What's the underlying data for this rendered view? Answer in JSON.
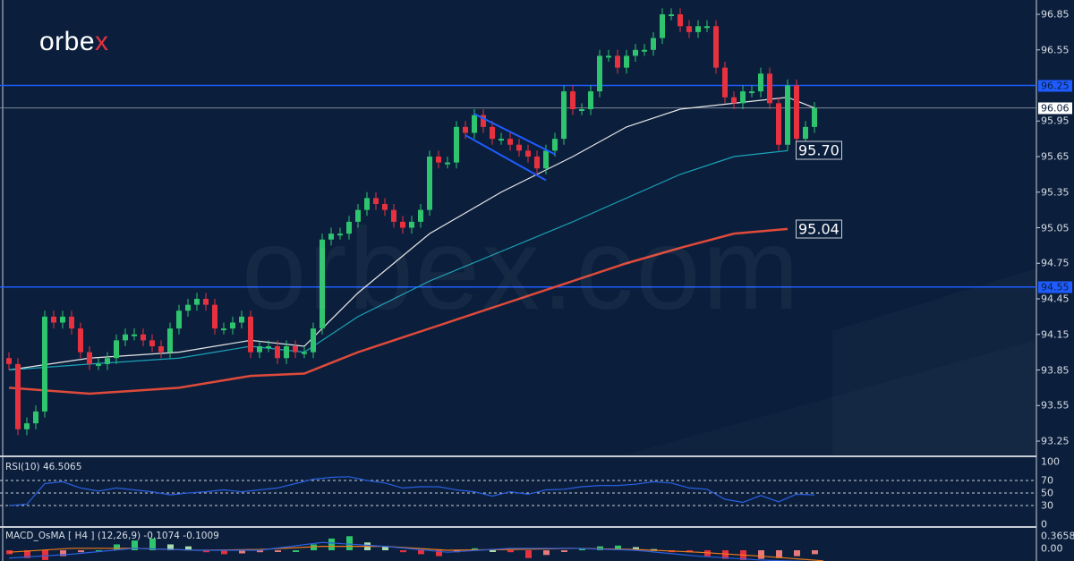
{
  "logo": {
    "text": "orbex",
    "watermark": "orbex.com"
  },
  "colors": {
    "background": "#0b1f3c",
    "up": "#2ec56e",
    "down": "#e8313f",
    "ma_fast": "#e6e6e6",
    "ma_mid": "#1aa3b8",
    "ma_slow": "#e04a3a",
    "level_line": "#1f5cff",
    "rsi": "#2a5fe0",
    "macd_line": "#2a5fe0",
    "signal_line": "#f07a1a"
  },
  "chart_data": {
    "type": "candlestick",
    "y_ticks": [
      "96.85",
      "96.55",
      "95.95",
      "95.65",
      "95.35",
      "95.05",
      "94.75",
      "94.45",
      "94.15",
      "93.85",
      "93.55",
      "93.25"
    ],
    "ylim": [
      93.15,
      96.95
    ],
    "close": [
      93.9,
      93.35,
      93.4,
      93.5,
      94.3,
      94.25,
      94.3,
      94.2,
      94.0,
      93.9,
      93.9,
      93.95,
      94.1,
      94.15,
      94.15,
      94.1,
      94.05,
      94.0,
      94.2,
      94.35,
      94.4,
      94.45,
      94.4,
      94.2,
      94.2,
      94.25,
      94.3,
      94.0,
      94.05,
      94.05,
      93.95,
      94.05,
      94.0,
      94.0,
      94.2,
      94.95,
      95.0,
      95.0,
      95.1,
      95.2,
      95.3,
      95.25,
      95.2,
      95.1,
      95.05,
      95.1,
      95.2,
      95.65,
      95.6,
      95.6,
      95.9,
      95.85,
      96.0,
      95.9,
      95.8,
      95.8,
      95.75,
      95.7,
      95.65,
      95.55,
      95.7,
      95.8,
      96.2,
      96.05,
      96.05,
      96.2,
      96.5,
      96.5,
      96.4,
      96.5,
      96.55,
      96.55,
      96.65,
      96.85,
      96.85,
      96.75,
      96.7,
      96.75,
      96.75,
      96.4,
      96.15,
      96.1,
      96.2,
      96.2,
      96.35,
      96.1,
      95.75,
      96.25,
      95.8,
      95.9,
      96.06
    ],
    "moving_averages": [
      {
        "color_key": "ma_fast",
        "values": [
          93.85,
          93.95,
          94.0,
          94.1,
          94.05,
          94.5,
          95.0,
          95.35,
          95.65,
          95.9,
          96.05,
          96.1,
          96.15,
          96.06
        ]
      },
      {
        "color_key": "ma_mid",
        "values": [
          93.85,
          93.9,
          93.95,
          94.05,
          94.0,
          94.3,
          94.6,
          94.85,
          95.1,
          95.3,
          95.5,
          95.65,
          95.7
        ]
      },
      {
        "color_key": "ma_slow",
        "values": [
          93.7,
          93.65,
          93.7,
          93.8,
          93.82,
          94.0,
          94.2,
          94.4,
          94.6,
          94.75,
          94.88,
          95.0,
          95.04
        ]
      }
    ],
    "levels": [
      {
        "price": 96.25,
        "label": "96.25",
        "style": "blue"
      },
      {
        "price": 94.55,
        "label": "94.55",
        "style": "blue"
      },
      {
        "price": 96.06,
        "label": "96.06",
        "style": "current"
      }
    ],
    "annotations": [
      {
        "label": "95.70",
        "price": 95.7
      },
      {
        "label": "95.04",
        "price": 95.04
      }
    ],
    "channel": {
      "upper": [
        [
          52,
          96.01
        ],
        [
          61,
          95.67
        ]
      ],
      "lower": [
        [
          51,
          95.83
        ],
        [
          60,
          95.45
        ]
      ]
    }
  },
  "rsi": {
    "label": "RSI(10) 46.5065",
    "ticks": [
      "100",
      "70",
      "50",
      "30",
      "0"
    ],
    "levels": [
      70,
      50,
      30
    ],
    "values": [
      30,
      32,
      65,
      68,
      58,
      53,
      58,
      55,
      52,
      47,
      50,
      52,
      55,
      52,
      55,
      58,
      65,
      72,
      75,
      76,
      70,
      66,
      58,
      60,
      60,
      55,
      52,
      45,
      52,
      48,
      55,
      56,
      60,
      62,
      62,
      64,
      68,
      66,
      58,
      56,
      40,
      35,
      46,
      36,
      48,
      47
    ]
  },
  "macd": {
    "label": "MACD_OsMA [ H4 ] (12,26,9)  -0.1074 -0.1009",
    "ticks": [
      "0.3658",
      "0.00"
    ],
    "histogram": [
      -0.1,
      -0.2,
      -0.25,
      -0.15,
      -0.05,
      0.0,
      0.15,
      0.25,
      0.3,
      0.15,
      0.1,
      -0.05,
      -0.1,
      -0.08,
      -0.05,
      -0.02,
      0.0,
      0.15,
      0.3,
      0.36,
      0.2,
      0.1,
      -0.05,
      -0.1,
      -0.15,
      -0.05,
      0.05,
      0.0,
      -0.05,
      -0.2,
      -0.12,
      -0.02,
      0.05,
      0.1,
      0.12,
      0.08,
      0.03,
      -0.05,
      -0.05,
      -0.15,
      -0.22,
      -0.25,
      -0.22,
      -0.2,
      -0.15,
      -0.1
    ],
    "macd_line": [
      -0.2,
      -0.1,
      0.05,
      0.0,
      0.0,
      0.2,
      0.1,
      -0.05,
      0.05,
      0.05,
      0.0,
      -0.15,
      -0.25,
      -0.3
    ],
    "signal_line": [
      -0.05,
      0.05,
      0.05,
      0.0,
      0.02,
      0.1,
      0.1,
      0.0,
      0.02,
      0.05,
      0.02,
      -0.05,
      -0.15,
      -0.27
    ]
  }
}
